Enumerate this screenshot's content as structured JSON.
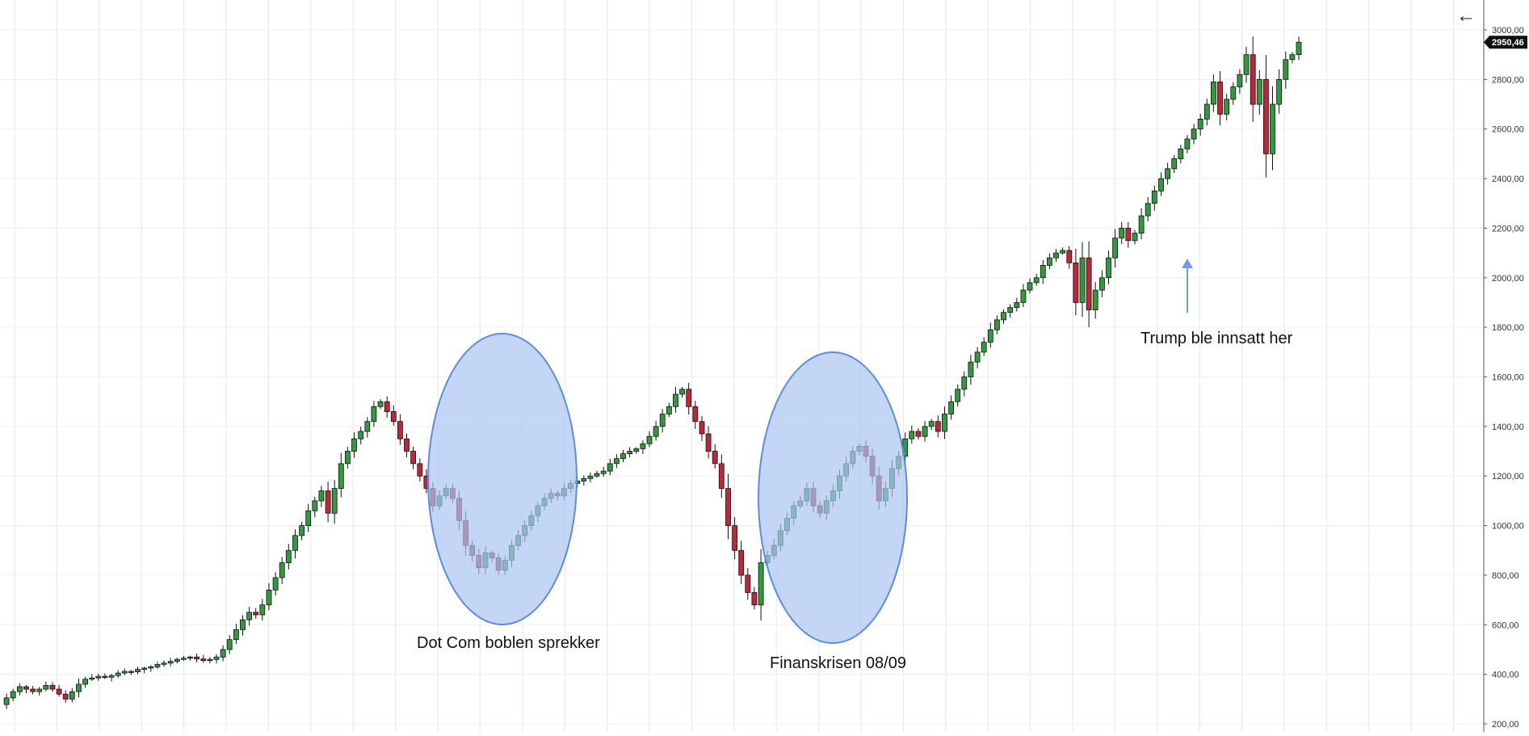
{
  "chart_data": {
    "type": "line",
    "style": "candlestick",
    "title": "",
    "xlabel": "",
    "ylabel": "",
    "ylim": [
      180,
      3060
    ],
    "yticks": [
      200,
      400,
      600,
      800,
      1000,
      1200,
      1400,
      1600,
      1800,
      2000,
      2200,
      2400,
      2600,
      2800,
      3000
    ],
    "ytick_labels": [
      "200,00",
      "400,00",
      "600,00",
      "800,00",
      "1000,00",
      "1200,00",
      "1400,00",
      "1600,00",
      "1800,00",
      "2000,00",
      "2200,00",
      "2400,00",
      "2600,00",
      "2800,00",
      "3000,00"
    ],
    "y_axis_position": "right",
    "grid": true,
    "last_price": 2950.46,
    "last_price_label": "2950,46",
    "series": [
      {
        "values": [
          278,
          305,
          330,
          350,
          340,
          330,
          340,
          355,
          340,
          320,
          300,
          330,
          360,
          380,
          385,
          392,
          388,
          395,
          405,
          412,
          410,
          420,
          425,
          430,
          440,
          445,
          452,
          460,
          465,
          470,
          462,
          455,
          460,
          470,
          500,
          540,
          580,
          620,
          650,
          640,
          680,
          740,
          790,
          850,
          900,
          960,
          1000,
          1060,
          1100,
          1140,
          1050,
          1150,
          1250,
          1300,
          1350,
          1380,
          1420,
          1480,
          1500,
          1460,
          1420,
          1350,
          1300,
          1250,
          1200,
          1150,
          1080,
          1120,
          1150,
          1110,
          1020,
          920,
          880,
          830,
          890,
          870,
          820,
          860,
          920,
          960,
          1000,
          1040,
          1080,
          1110,
          1130,
          1120,
          1150,
          1170,
          1180,
          1190,
          1200,
          1210,
          1220,
          1250,
          1270,
          1290,
          1300,
          1310,
          1330,
          1360,
          1400,
          1450,
          1480,
          1530,
          1550,
          1480,
          1420,
          1370,
          1300,
          1250,
          1150,
          1000,
          900,
          800,
          730,
          680,
          850,
          880,
          920,
          980,
          1030,
          1080,
          1100,
          1150,
          1080,
          1050,
          1100,
          1140,
          1200,
          1250,
          1300,
          1320,
          1280,
          1200,
          1100,
          1150,
          1230,
          1280,
          1350,
          1380,
          1360,
          1400,
          1420,
          1380,
          1450,
          1500,
          1550,
          1600,
          1660,
          1700,
          1740,
          1790,
          1830,
          1860,
          1880,
          1900,
          1950,
          1980,
          2000,
          2050,
          2080,
          2100,
          2110,
          2060,
          1900,
          2080,
          1870,
          1950,
          2000,
          2080,
          2160,
          2200,
          2150,
          2180,
          2250,
          2300,
          2350,
          2400,
          2440,
          2480,
          2520,
          2560,
          2600,
          2640,
          2700,
          2790,
          2660,
          2720,
          2770,
          2820,
          2900,
          2700,
          2800,
          2500,
          2700,
          2800,
          2880,
          2900,
          2950
        ]
      }
    ],
    "annotations": [
      {
        "text": "Dot Com boblen sprekker",
        "shape": "ellipse"
      },
      {
        "text": "Finanskrisen 08/09",
        "shape": "ellipse"
      },
      {
        "text": "Trump ble innsatt her",
        "shape": "arrow"
      }
    ]
  },
  "toolbar": {
    "back_icon": "arrow-left-icon",
    "back_glyph": "←"
  },
  "colors": {
    "background": "#ffffff",
    "grid": "#e6e6e6",
    "up_candle": "#2e9b3c",
    "down_candle": "#c0263a",
    "wick": "#111111",
    "ellipse_fill": "#a9c4f2",
    "ellipse_stroke": "#5b8be6",
    "arrow": "#6f9be8",
    "price_badge": "#111111",
    "axis_line": "#555555"
  }
}
